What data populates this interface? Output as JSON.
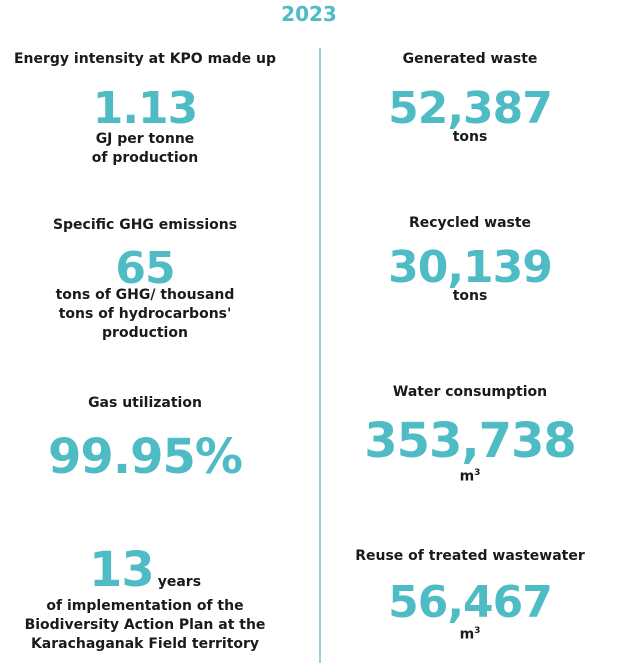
{
  "colors": {
    "accent": "#4fbcc5",
    "divider": "#8fd2d7"
  },
  "year": "2023",
  "left": {
    "energy": {
      "label": "Energy intensity at KPO made up",
      "value": "1.13",
      "unit_line1": "GJ per tonne",
      "unit_line2": "of production"
    },
    "ghg": {
      "label": "Specific GHG emissions",
      "value": "65",
      "unit_line1": "tons of GHG/ thousand",
      "unit_line2": "tons of hydrocarbons'",
      "unit_line3": "production"
    },
    "gas": {
      "label": "Gas utilization",
      "value": "99.95%"
    },
    "biodiversity": {
      "value": "13",
      "value_unit": "years",
      "text_line1": "of implementation of the",
      "text_line2": "Biodiversity Action Plan at the",
      "text_line3": "Karachaganak Field territory"
    }
  },
  "right": {
    "generated_waste": {
      "label": "Generated waste",
      "value": "52,387",
      "unit": "tons"
    },
    "recycled_waste": {
      "label": "Recycled waste",
      "value": "30,139",
      "unit": "tons"
    },
    "water": {
      "label": "Water consumption",
      "value": "353,738",
      "unit": "m",
      "unit_sup": "3"
    },
    "reuse": {
      "label": "Reuse of treated wastewater",
      "value": "56,467",
      "unit": "m",
      "unit_sup": "3"
    }
  }
}
